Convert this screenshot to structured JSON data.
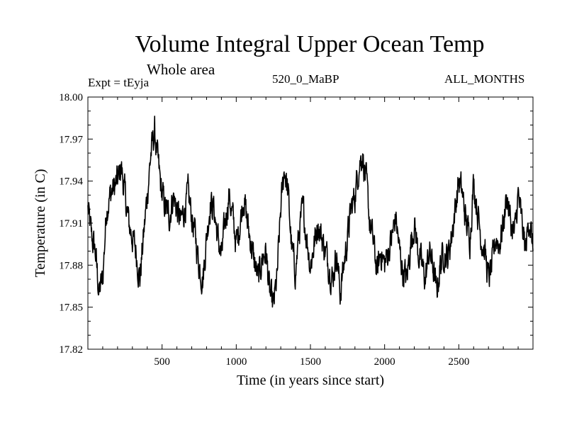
{
  "header": {
    "title": "Volume Integral Upper Ocean Temp",
    "subtitle": "Whole area",
    "experiment": "Expt = tEyja",
    "run": "520_0_MaBP",
    "months": "ALL_MONTHS"
  },
  "chart_data": {
    "type": "line",
    "title": "Volume Integral Upper Ocean Temp",
    "subtitle": "Whole area",
    "xlabel": "Time (in years since start)",
    "ylabel": "Temperature (in C)",
    "xlim": [
      0,
      3000
    ],
    "ylim": [
      17.82,
      18.0
    ],
    "xticks": [
      500,
      1000,
      1500,
      2000,
      2500
    ],
    "yticks": [
      17.82,
      17.85,
      17.88,
      17.91,
      17.94,
      17.97,
      18.0
    ],
    "ytick_labels": [
      "17.82",
      "17.85",
      "17.88",
      "17.91",
      "17.94",
      "17.97",
      "18.00"
    ],
    "grid": false,
    "series": [
      {
        "name": "Volume Integral Upper Ocean Temp",
        "x": [
          0,
          25,
          50,
          75,
          100,
          125,
          150,
          175,
          200,
          225,
          250,
          275,
          300,
          325,
          350,
          375,
          400,
          425,
          450,
          475,
          500,
          525,
          550,
          575,
          600,
          625,
          650,
          675,
          700,
          725,
          750,
          775,
          800,
          825,
          850,
          875,
          900,
          925,
          950,
          975,
          1000,
          1025,
          1050,
          1075,
          1100,
          1125,
          1150,
          1175,
          1200,
          1225,
          1250,
          1275,
          1300,
          1325,
          1350,
          1375,
          1400,
          1425,
          1450,
          1475,
          1500,
          1525,
          1550,
          1575,
          1600,
          1625,
          1650,
          1675,
          1700,
          1725,
          1750,
          1775,
          1800,
          1825,
          1850,
          1875,
          1900,
          1925,
          1950,
          1975,
          2000,
          2025,
          2050,
          2075,
          2100,
          2125,
          2150,
          2175,
          2200,
          2225,
          2250,
          2275,
          2300,
          2325,
          2350,
          2375,
          2400,
          2425,
          2450,
          2475,
          2500,
          2525,
          2550,
          2575,
          2600,
          2625,
          2650,
          2675,
          2700,
          2725,
          2750,
          2775,
          2800,
          2825,
          2850,
          2875,
          2900,
          2925,
          2950,
          2975,
          3000
        ],
        "values": [
          17.92,
          17.9,
          17.89,
          17.86,
          17.87,
          17.92,
          17.93,
          17.935,
          17.94,
          17.95,
          17.93,
          17.91,
          17.9,
          17.89,
          17.87,
          17.9,
          17.93,
          17.96,
          17.975,
          17.95,
          17.93,
          17.92,
          17.915,
          17.93,
          17.92,
          17.91,
          17.92,
          17.93,
          17.915,
          17.9,
          17.88,
          17.87,
          17.9,
          17.925,
          17.92,
          17.9,
          17.885,
          17.91,
          17.93,
          17.915,
          17.895,
          17.91,
          17.93,
          17.91,
          17.895,
          17.88,
          17.87,
          17.885,
          17.89,
          17.86,
          17.85,
          17.87,
          17.92,
          17.95,
          17.93,
          17.89,
          17.875,
          17.905,
          17.92,
          17.9,
          17.88,
          17.895,
          17.91,
          17.9,
          17.89,
          17.88,
          17.87,
          17.89,
          17.86,
          17.88,
          17.9,
          17.92,
          17.93,
          17.95,
          17.96,
          17.94,
          17.91,
          17.895,
          17.875,
          17.89,
          17.88,
          17.89,
          17.9,
          17.915,
          17.89,
          17.875,
          17.87,
          17.895,
          17.91,
          17.89,
          17.88,
          17.87,
          17.89,
          17.88,
          17.86,
          17.88,
          17.89,
          17.885,
          17.9,
          17.92,
          17.94,
          17.93,
          17.91,
          17.9,
          17.94,
          17.92,
          17.9,
          17.89,
          17.87,
          17.88,
          17.9,
          17.895,
          17.91,
          17.93,
          17.91,
          17.9,
          17.93,
          17.91,
          17.89,
          17.915,
          17.89
        ]
      }
    ]
  }
}
